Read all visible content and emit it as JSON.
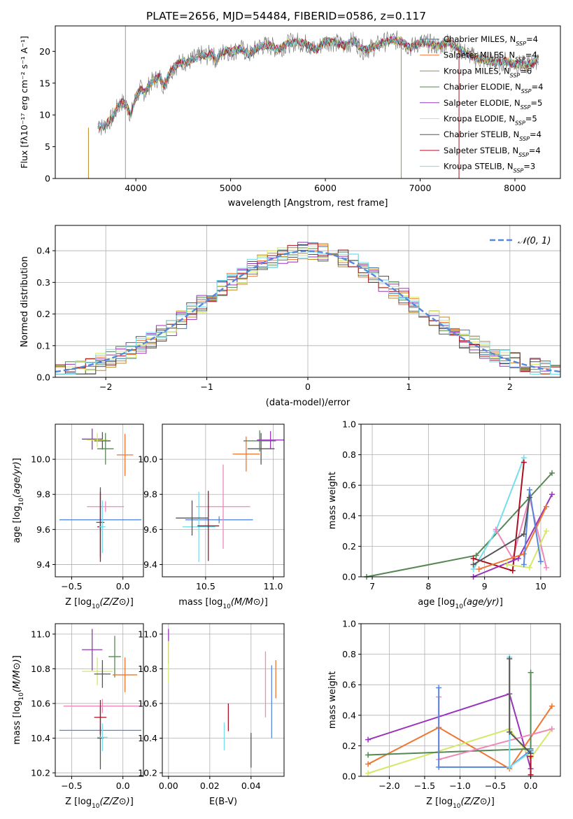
{
  "chart_data": [
    {
      "id": "spectrum",
      "type": "line",
      "title": "PLATE=2656, MJD=54484, FIBERID=0586, z=0.117",
      "xlabel": "wavelength [Angstrom, rest frame]",
      "ylabel": "Flux [f_λ10^-17 erg cm^-2 s^-1 A^-1]",
      "xlim": [
        3150,
        8480
      ],
      "ylim": [
        0,
        24
      ],
      "xticks": [
        4000,
        5000,
        6000,
        7000,
        8000
      ],
      "yticks": [
        0,
        5,
        10,
        15,
        20
      ],
      "grid": false,
      "legend_position": "top-right",
      "data_color": "#808080",
      "data": {
        "x": [
          3600,
          3650,
          3700,
          3750,
          3800,
          3850,
          3900,
          3950,
          4000,
          4050,
          4100,
          4150,
          4200,
          4250,
          4300,
          4350,
          4400,
          4450,
          4500,
          4550,
          4600,
          4650,
          4700,
          4750,
          4800,
          4850,
          4900,
          4950,
          5000,
          5100,
          5200,
          5300,
          5400,
          5500,
          5600,
          5700,
          5800,
          5900,
          6000,
          6100,
          6200,
          6300,
          6400,
          6500,
          6600,
          6700,
          6800,
          6900,
          7000,
          7100,
          7200,
          7300,
          7400,
          7500,
          7600,
          7700,
          7800,
          7900,
          8000,
          8100,
          8200,
          8250
        ],
        "y": [
          8.5,
          8.0,
          8.8,
          9.5,
          11,
          12,
          11.5,
          10,
          12.8,
          14,
          13.5,
          15,
          15.5,
          16,
          14.5,
          16.5,
          17.5,
          18,
          18.5,
          18.2,
          18.8,
          19,
          19.5,
          19.2,
          19.8,
          18.5,
          19.6,
          20.2,
          19.8,
          20.5,
          19.5,
          20.8,
          21,
          20.3,
          21.2,
          21.5,
          21.2,
          20.2,
          21.6,
          21.4,
          20.8,
          21.7,
          20.2,
          20.6,
          21.3,
          21.8,
          21.6,
          20.6,
          21.4,
          21.2,
          20.8,
          21.5,
          20.4,
          19.6,
          18.8,
          18.6,
          18.2,
          18.5,
          18.0,
          17.8,
          18.3,
          19.0
        ]
      },
      "series": [
        {
          "name": "Chabrier MILES, N_SSP=4",
          "name_main": "Chabrier MILES, N",
          "name_sub": "SSP",
          "name_tail": "=4",
          "color": "#4477aa"
        },
        {
          "name": "Salpeter MILES, N_SSP=4",
          "name_main": "Salpeter MILES, N",
          "name_sub": "SSP",
          "name_tail": "=4",
          "color": "#ee7733"
        },
        {
          "name": "Kroupa MILES, N_SSP=6",
          "name_main": "Kroupa MILES, N",
          "name_sub": "SSP",
          "name_tail": "=6",
          "color": "#bb8822"
        },
        {
          "name": "Chabrier ELODIE, N_SSP=4",
          "name_main": "Chabrier ELODIE, N",
          "name_sub": "SSP",
          "name_tail": "=4",
          "color": "#558855"
        },
        {
          "name": "Salpeter ELODIE, N_SSP=5",
          "name_main": "Salpeter ELODIE, N",
          "name_sub": "SSP",
          "name_tail": "=5",
          "color": "#9933bb"
        },
        {
          "name": "Kroupa ELODIE, N_SSP=5",
          "name_main": "Kroupa ELODIE, N",
          "name_sub": "SSP",
          "name_tail": "=5",
          "color": "#d4e86a"
        },
        {
          "name": "Chabrier STELIB, N_SSP=4",
          "name_main": "Chabrier STELIB, N",
          "name_sub": "SSP",
          "name_tail": "=4",
          "color": "#555555"
        },
        {
          "name": "Salpeter STELIB, N_SSP=4",
          "name_main": "Salpeter STELIB, N",
          "name_sub": "SSP",
          "name_tail": "=4",
          "color": "#aa1122"
        },
        {
          "name": "Kroupa STELIB, N_SSP=3",
          "name_main": "Kroupa STELIB, N",
          "name_sub": "SSP",
          "name_tail": "=3",
          "color": "#77ddee"
        }
      ]
    },
    {
      "id": "residuals",
      "type": "bar",
      "xlabel": "(data-model)/error",
      "ylabel": "Normed distribution",
      "xlim": [
        -2.5,
        2.5
      ],
      "ylim": [
        0,
        0.48
      ],
      "xticks": [
        -2,
        -1,
        0,
        1,
        2
      ],
      "yticks": [
        0.0,
        0.1,
        0.2,
        0.3,
        0.4
      ],
      "grid": true,
      "legend_position": "top-right",
      "curve": {
        "name": "N(0,1)",
        "label": "𝒩(0, 1)",
        "color": "#5588dd"
      },
      "bin_width": 0.1,
      "colors": [
        "#4477aa",
        "#ee7733",
        "#bb8822",
        "#558855",
        "#9933bb",
        "#d4e86a",
        "#555555",
        "#aa1122",
        "#77ddee"
      ]
    },
    {
      "id": "age-Z",
      "type": "scatter",
      "xlabel": "Z [log10(Z/Z⊙)]",
      "ylabel": "age  [log10(age/yr)]",
      "xlim": [
        -0.66,
        0.2
      ],
      "ylim": [
        9.33,
        10.2
      ],
      "xticks": [
        -0.5,
        0.0
      ],
      "yticks": [
        9.4,
        9.6,
        9.8,
        10.0
      ],
      "grid": true,
      "points": [
        {
          "x": -0.22,
          "xerr": 0.4,
          "y": 9.655,
          "yerr": 0.07,
          "color": "#5588dd"
        },
        {
          "x": -0.17,
          "xerr": 0.18,
          "y": 9.73,
          "yerr": 0.03,
          "color": "#ee88bb"
        },
        {
          "x": -0.22,
          "xerr": 0.04,
          "y": 9.64,
          "yerr": 0.2,
          "color": "#555555"
        },
        {
          "x": -0.22,
          "xerr": 0.03,
          "y": 9.615,
          "yerr": 0.2,
          "color": "#aa1122"
        },
        {
          "x": -0.2,
          "xerr": 0.03,
          "y": 9.615,
          "yerr": 0.15,
          "color": "#77ddee"
        },
        {
          "x": 0.02,
          "xerr": 0.08,
          "y": 10.025,
          "yerr": 0.12,
          "color": "#ee7733"
        },
        {
          "x": -0.2,
          "xerr": 0.08,
          "y": 10.105,
          "yerr": 0.05,
          "color": "#555555"
        },
        {
          "x": -0.3,
          "xerr": 0.1,
          "y": 10.115,
          "yerr": 0.06,
          "color": "#9933bb"
        },
        {
          "x": -0.25,
          "xerr": 0.1,
          "y": 10.11,
          "yerr": 0.04,
          "color": "#d4e86a"
        },
        {
          "x": -0.17,
          "xerr": 0.08,
          "y": 10.06,
          "yerr": 0.09,
          "color": "#558855"
        }
      ]
    },
    {
      "id": "age-mass",
      "type": "scatter",
      "xlabel": "mass [log10(M/M⊙)]",
      "ylabel": "",
      "xlim": [
        10.18,
        11.08
      ],
      "ylim": [
        9.33,
        10.2
      ],
      "xticks": [
        10.5,
        11.0
      ],
      "yticks": [
        9.4,
        9.6,
        9.8,
        10.0
      ],
      "grid": true,
      "points": [
        {
          "x": 10.6,
          "xerr": 0.25,
          "y": 9.655,
          "yerr": 0.02,
          "color": "#5588dd"
        },
        {
          "x": 10.63,
          "xerr": 0.2,
          "y": 9.73,
          "yerr": 0.24,
          "color": "#ee88bb"
        },
        {
          "x": 10.45,
          "xerr": 0.12,
          "y": 9.615,
          "yerr": 0.2,
          "color": "#77ddee"
        },
        {
          "x": 10.52,
          "xerr": 0.08,
          "y": 9.62,
          "yerr": 0.2,
          "color": "#aa1122"
        },
        {
          "x": 10.4,
          "xerr": 0.12,
          "y": 9.665,
          "yerr": 0.1,
          "color": "#555555"
        },
        {
          "x": 10.8,
          "xerr": 0.1,
          "y": 10.03,
          "yerr": 0.1,
          "color": "#ee7733"
        },
        {
          "x": 10.91,
          "xerr": 0.1,
          "y": 10.06,
          "yerr": 0.09,
          "color": "#555555"
        },
        {
          "x": 10.9,
          "xerr": 0.12,
          "y": 10.105,
          "yerr": 0.06,
          "color": "#558855"
        },
        {
          "x": 10.98,
          "xerr": 0.1,
          "y": 10.11,
          "yerr": 0.05,
          "color": "#9933bb"
        }
      ]
    },
    {
      "id": "weight-age",
      "type": "line",
      "xlabel": "age  [log10(age/yr)]",
      "ylabel": "mass weight",
      "xlim": [
        6.8,
        10.35
      ],
      "ylim": [
        0,
        1.0
      ],
      "xticks": [
        7,
        8,
        9,
        10
      ],
      "yticks": [
        0.0,
        0.2,
        0.4,
        0.6,
        0.8,
        1.0
      ],
      "grid": true,
      "series": [
        {
          "color": "#558855",
          "x": [
            6.9,
            8.85,
            10.2
          ],
          "y": [
            0.0,
            0.14,
            0.68
          ]
        },
        {
          "color": "#77ddee",
          "x": [
            8.8,
            9.2,
            9.7
          ],
          "y": [
            0.05,
            0.3,
            0.78
          ]
        },
        {
          "color": "#ee88bb",
          "x": [
            9.2,
            9.5,
            9.8,
            10.1
          ],
          "y": [
            0.31,
            0.12,
            0.52,
            0.06
          ]
        },
        {
          "color": "#aa1122",
          "x": [
            8.8,
            9.5,
            9.7
          ],
          "y": [
            0.12,
            0.04,
            0.75
          ]
        },
        {
          "color": "#9933bb",
          "x": [
            8.8,
            9.6,
            10.2
          ],
          "y": [
            0.0,
            0.12,
            0.54
          ]
        },
        {
          "color": "#ee7733",
          "x": [
            8.9,
            9.7,
            10.1
          ],
          "y": [
            0.05,
            0.15,
            0.46
          ]
        },
        {
          "color": "#d4e86a",
          "x": [
            9.4,
            9.8,
            10.1
          ],
          "y": [
            0.08,
            0.06,
            0.3
          ]
        },
        {
          "color": "#5588dd",
          "x": [
            9.7,
            9.8,
            10.0
          ],
          "y": [
            0.08,
            0.57,
            0.1
          ]
        },
        {
          "color": "#555555",
          "x": [
            8.8,
            9.7,
            9.8
          ],
          "y": [
            0.08,
            0.28,
            0.52
          ]
        }
      ]
    },
    {
      "id": "mass-Z",
      "type": "scatter",
      "xlabel": "Z [log10(Z/Z⊙)]",
      "ylabel": "mass [log10(M/M⊙)]",
      "xlim": [
        -0.66,
        0.2
      ],
      "ylim": [
        10.18,
        11.06
      ],
      "xticks": [
        -0.5,
        0.0
      ],
      "yticks": [
        10.2,
        10.4,
        10.6,
        10.8,
        11.0
      ],
      "grid": true,
      "points": [
        {
          "x": -0.22,
          "xerr": 0.4,
          "y": 10.445,
          "yerr": 0.02,
          "color": "#5588dd"
        },
        {
          "x": -0.2,
          "xerr": 0.38,
          "y": 10.585,
          "yerr": 0.04,
          "color": "#ee88bb"
        },
        {
          "x": -0.22,
          "xerr": 0.03,
          "y": 10.4,
          "yerr": 0.18,
          "color": "#555555"
        },
        {
          "x": -0.22,
          "xerr": 0.06,
          "y": 10.52,
          "yerr": 0.1,
          "color": "#aa1122"
        },
        {
          "x": -0.2,
          "xerr": 0.05,
          "y": 10.405,
          "yerr": 0.08,
          "color": "#77ddee"
        },
        {
          "x": -0.3,
          "xerr": 0.1,
          "y": 10.91,
          "yerr": 0.12,
          "color": "#9933bb"
        },
        {
          "x": -0.25,
          "xerr": 0.15,
          "y": 10.785,
          "yerr": 0.08,
          "color": "#d4e86a"
        },
        {
          "x": -0.2,
          "xerr": 0.08,
          "y": 10.77,
          "yerr": 0.08,
          "color": "#555555"
        },
        {
          "x": -0.08,
          "xerr": 0.06,
          "y": 10.87,
          "yerr": 0.12,
          "color": "#558855"
        },
        {
          "x": 0.02,
          "xerr": 0.12,
          "y": 10.765,
          "yerr": 0.1,
          "color": "#ee7733"
        }
      ]
    },
    {
      "id": "mass-EBV",
      "type": "scatter",
      "xlabel": "E(B-V)",
      "ylabel": "",
      "xlim": [
        -0.003,
        0.056
      ],
      "ylim": [
        10.18,
        11.06
      ],
      "xticks": [
        0.0,
        0.02,
        0.04
      ],
      "yticks": [
        10.2,
        10.4,
        10.6,
        10.8,
        11.0
      ],
      "grid": true,
      "points": [
        {
          "x": 0.0,
          "y": 10.93,
          "yerr": 0.1,
          "color": "#9933bb"
        },
        {
          "x": 0.0,
          "y": 10.84,
          "yerr": 0.12,
          "color": "#d4e86a"
        },
        {
          "x": 0.027,
          "y": 10.41,
          "yerr": 0.08,
          "color": "#77ddee"
        },
        {
          "x": 0.029,
          "y": 10.52,
          "yerr": 0.08,
          "color": "#aa1122"
        },
        {
          "x": 0.04,
          "y": 10.33,
          "yerr": 0.1,
          "color": "#555555"
        },
        {
          "x": 0.047,
          "y": 10.71,
          "yerr": 0.19,
          "color": "#ee88bb"
        },
        {
          "x": 0.05,
          "y": 10.61,
          "yerr": 0.21,
          "color": "#5588dd"
        },
        {
          "x": 0.052,
          "y": 10.74,
          "yerr": 0.11,
          "color": "#ee7733"
        }
      ]
    },
    {
      "id": "weight-Z",
      "type": "line",
      "xlabel": "Z [log10(Z/Z⊙)]",
      "ylabel": "mass weight",
      "xlim": [
        -2.4,
        0.42
      ],
      "ylim": [
        0,
        1.0
      ],
      "xticks": [
        -2.0,
        -1.5,
        -1.0,
        -0.5,
        0.0
      ],
      "yticks": [
        0.0,
        0.2,
        0.4,
        0.6,
        0.8,
        1.0
      ],
      "grid": true,
      "series": [
        {
          "color": "#9933bb",
          "x": [
            -2.3,
            -0.3,
            0.0
          ],
          "y": [
            0.24,
            0.54,
            0.05
          ]
        },
        {
          "color": "#ee7733",
          "x": [
            -2.3,
            -1.3,
            -0.3,
            0.3
          ],
          "y": [
            0.08,
            0.32,
            0.05,
            0.46
          ]
        },
        {
          "color": "#d4e86a",
          "x": [
            -2.3,
            -0.3,
            0.0,
            0.3
          ],
          "y": [
            0.02,
            0.31,
            0.12,
            0.31
          ]
        },
        {
          "color": "#558855",
          "x": [
            -2.3,
            0.0,
            0.0
          ],
          "y": [
            0.14,
            0.18,
            0.68
          ]
        },
        {
          "color": "#ee88bb",
          "x": [
            -1.3,
            -1.3,
            0.3
          ],
          "y": [
            0.52,
            0.11,
            0.31
          ]
        },
        {
          "color": "#5588dd",
          "x": [
            -1.3,
            -1.3,
            -0.3,
            0.0
          ],
          "y": [
            0.58,
            0.06,
            0.06,
            0.17
          ]
        },
        {
          "color": "#77ddee",
          "x": [
            -0.3,
            -0.3,
            0.0
          ],
          "y": [
            0.78,
            0.06,
            0.16
          ]
        },
        {
          "color": "#555555",
          "x": [
            -0.3,
            -0.3,
            0.0
          ],
          "y": [
            0.77,
            0.29,
            0.15
          ]
        },
        {
          "color": "#aa1122",
          "x": [
            0.0,
            0.0
          ],
          "y": [
            0.01,
            0.13
          ]
        }
      ]
    }
  ]
}
